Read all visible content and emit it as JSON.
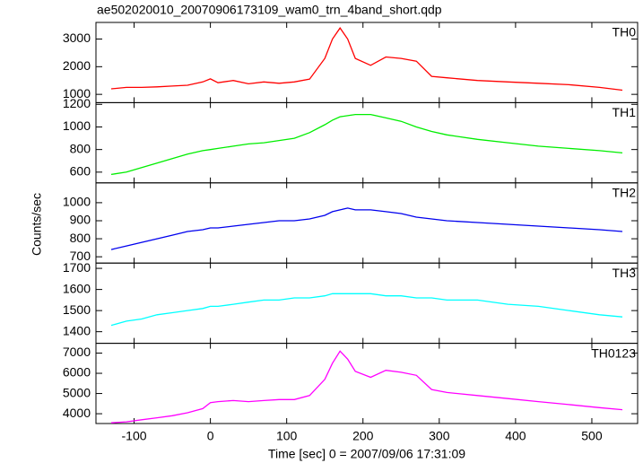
{
  "title": "ae502020010_20070906173109_wam0_trn_4band_short.qdp",
  "x_label": "Time [sec] 0 = 2007/09/06 17:31:09",
  "y_label": "Counts/sec",
  "chart_data": [
    {
      "type": "line",
      "x": [
        -130,
        -110,
        -90,
        -70,
        -50,
        -30,
        -10,
        0,
        10,
        30,
        50,
        70,
        90,
        110,
        130,
        150,
        160,
        170,
        180,
        190,
        210,
        230,
        250,
        270,
        290,
        310,
        350,
        390,
        430,
        470,
        510,
        540
      ],
      "series": [
        {
          "name": "TH0",
          "color": "#ff0000",
          "values": [
            1200,
            1250,
            1250,
            1270,
            1300,
            1330,
            1450,
            1560,
            1420,
            1500,
            1380,
            1450,
            1400,
            1450,
            1550,
            2300,
            3000,
            3400,
            3000,
            2300,
            2050,
            2350,
            2300,
            2200,
            1650,
            1600,
            1500,
            1450,
            1400,
            1350,
            1250,
            1150
          ]
        }
      ],
      "ylim": [
        700,
        3600
      ],
      "yticks": [
        1000,
        2000,
        3000
      ]
    },
    {
      "type": "line",
      "x": [
        -130,
        -110,
        -90,
        -70,
        -50,
        -30,
        -10,
        0,
        10,
        30,
        50,
        70,
        90,
        110,
        130,
        150,
        160,
        170,
        180,
        190,
        210,
        230,
        250,
        270,
        290,
        310,
        350,
        390,
        430,
        470,
        510,
        540
      ],
      "series": [
        {
          "name": "TH1",
          "color": "#00ee00",
          "values": [
            580,
            600,
            640,
            680,
            720,
            760,
            790,
            800,
            810,
            830,
            850,
            860,
            880,
            900,
            950,
            1020,
            1060,
            1090,
            1100,
            1110,
            1110,
            1080,
            1050,
            1000,
            960,
            930,
            890,
            860,
            830,
            810,
            790,
            770
          ]
        }
      ],
      "ylim": [
        505,
        1215
      ],
      "yticks": [
        600,
        800,
        1000,
        1200
      ]
    },
    {
      "type": "line",
      "x": [
        -130,
        -110,
        -90,
        -70,
        -50,
        -30,
        -10,
        0,
        10,
        30,
        50,
        70,
        90,
        110,
        130,
        150,
        160,
        170,
        180,
        190,
        210,
        230,
        250,
        270,
        290,
        310,
        350,
        390,
        430,
        470,
        510,
        540
      ],
      "series": [
        {
          "name": "TH2",
          "color": "#0000ee",
          "values": [
            740,
            760,
            780,
            800,
            820,
            840,
            850,
            860,
            860,
            870,
            880,
            890,
            900,
            900,
            910,
            930,
            950,
            960,
            970,
            960,
            960,
            950,
            940,
            920,
            910,
            900,
            890,
            880,
            870,
            860,
            850,
            840
          ]
        }
      ],
      "ylim": [
        665,
        1110
      ],
      "yticks": [
        700,
        800,
        900,
        1000
      ]
    },
    {
      "type": "line",
      "x": [
        -130,
        -110,
        -90,
        -70,
        -50,
        -30,
        -10,
        0,
        10,
        30,
        50,
        70,
        90,
        110,
        130,
        150,
        160,
        170,
        180,
        190,
        210,
        230,
        250,
        270,
        290,
        310,
        350,
        390,
        430,
        470,
        510,
        540
      ],
      "series": [
        {
          "name": "TH3",
          "color": "#00ffff",
          "values": [
            1430,
            1450,
            1460,
            1480,
            1490,
            1500,
            1510,
            1520,
            1520,
            1530,
            1540,
            1550,
            1550,
            1560,
            1560,
            1570,
            1580,
            1580,
            1580,
            1580,
            1580,
            1570,
            1570,
            1560,
            1560,
            1550,
            1550,
            1530,
            1520,
            1500,
            1480,
            1470
          ]
        }
      ],
      "ylim": [
        1345,
        1725
      ],
      "yticks": [
        1400,
        1500,
        1600,
        1700
      ]
    },
    {
      "type": "line",
      "x": [
        -130,
        -110,
        -90,
        -70,
        -50,
        -30,
        -10,
        0,
        10,
        30,
        50,
        70,
        90,
        110,
        130,
        150,
        160,
        170,
        180,
        190,
        210,
        230,
        250,
        270,
        290,
        310,
        350,
        390,
        430,
        470,
        510,
        540
      ],
      "series": [
        {
          "name": "TH0123",
          "color": "#ff00ff",
          "values": [
            3550,
            3600,
            3700,
            3800,
            3900,
            4050,
            4250,
            4550,
            4600,
            4650,
            4600,
            4650,
            4700,
            4700,
            4900,
            5700,
            6500,
            7100,
            6700,
            6100,
            5800,
            6150,
            6050,
            5900,
            5200,
            5050,
            4900,
            4750,
            4600,
            4450,
            4300,
            4200
          ]
        }
      ],
      "ylim": [
        3515,
        7485
      ],
      "yticks": [
        4000,
        5000,
        6000,
        7000
      ],
      "xlim": [
        -150,
        560
      ],
      "xticks": [
        -100,
        0,
        100,
        200,
        300,
        400,
        500
      ]
    }
  ]
}
